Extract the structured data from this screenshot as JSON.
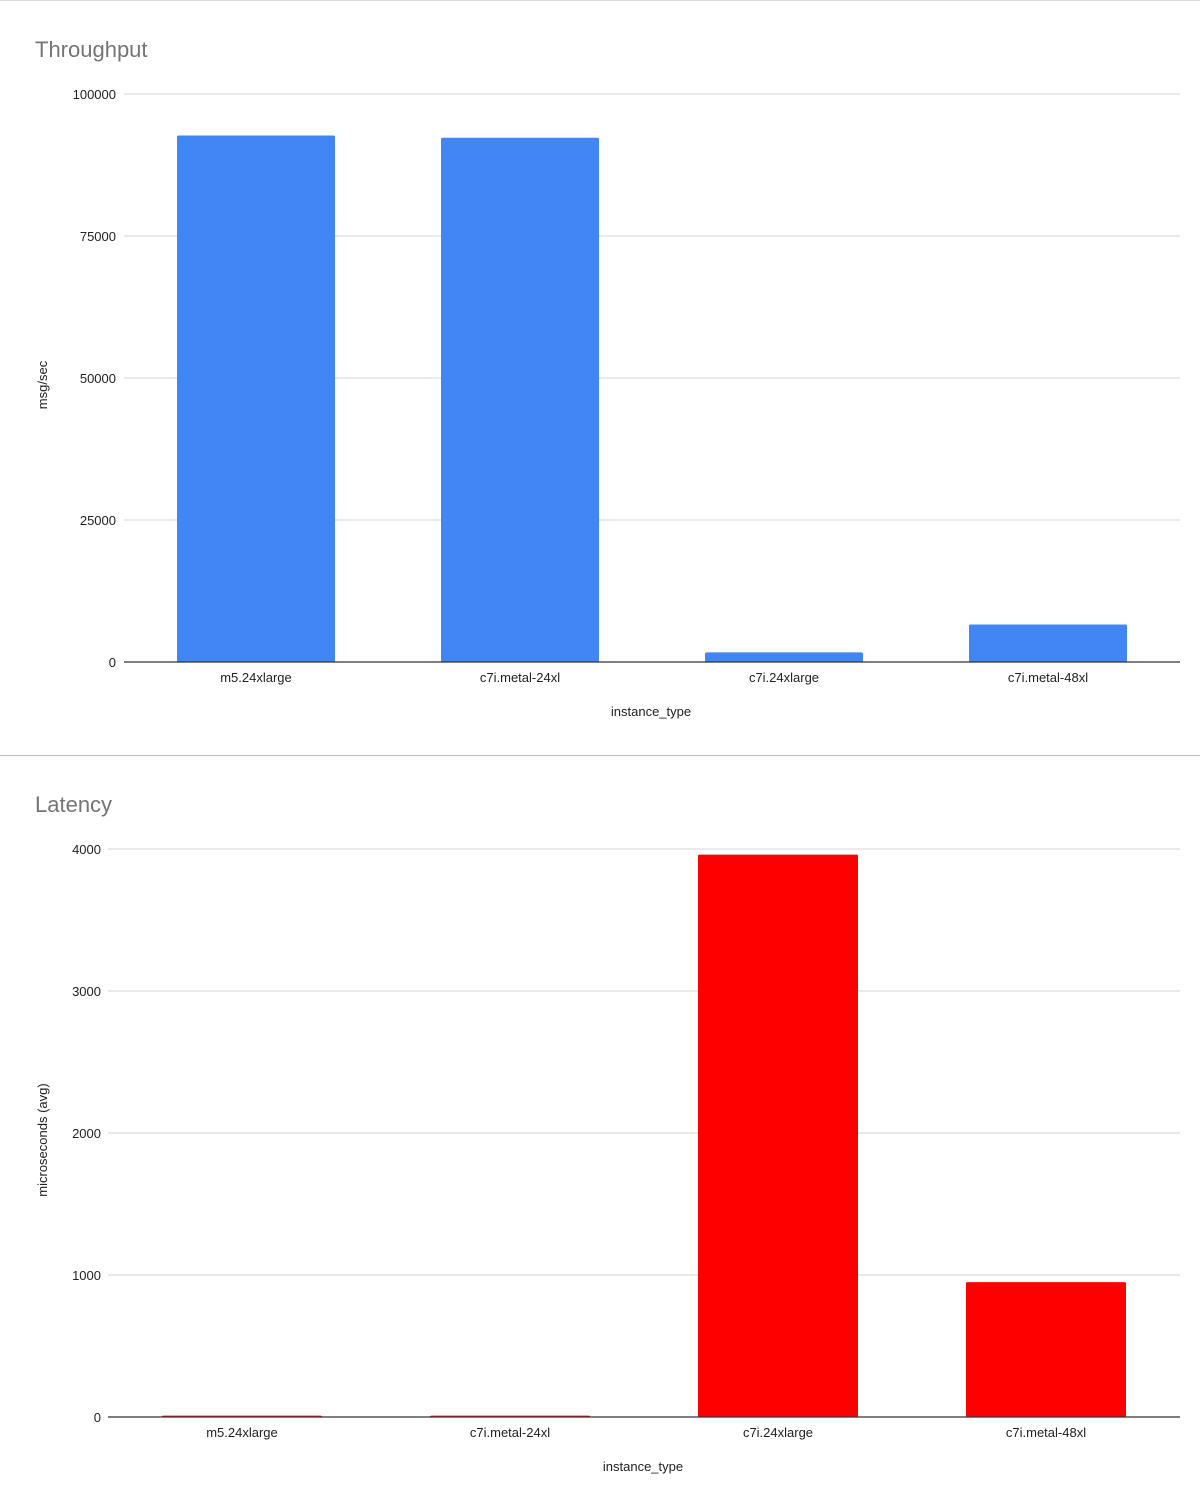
{
  "chart_data": [
    {
      "type": "bar",
      "title": "Throughput",
      "xlabel": "instance_type",
      "ylabel": "msg/sec",
      "categories": [
        "m5.24xlarge",
        "c7i.metal-24xl",
        "c7i.24xlarge",
        "c7i.metal-48xl"
      ],
      "values": [
        92700,
        92300,
        1700,
        6600
      ],
      "ylim": [
        0,
        100000
      ],
      "yticks": [
        "0",
        "25000",
        "50000",
        "75000",
        "100000"
      ],
      "ytick_values": [
        0,
        25000,
        50000,
        75000,
        100000
      ],
      "color": "#4285F4",
      "grid": true,
      "legend": "none"
    },
    {
      "type": "bar",
      "title": "Latency",
      "xlabel": "instance_type",
      "ylabel": "microseconds (avg)",
      "categories": [
        "m5.24xlarge",
        "c7i.metal-24xl",
        "c7i.24xlarge",
        "c7i.metal-48xl"
      ],
      "values": [
        10,
        10,
        3960,
        950
      ],
      "ylim": [
        0,
        4000
      ],
      "yticks": [
        "0",
        "1000",
        "2000",
        "3000",
        "4000"
      ],
      "ytick_values": [
        0,
        1000,
        2000,
        3000,
        4000
      ],
      "color": "#FF0000",
      "grid": true,
      "legend": "none"
    }
  ]
}
